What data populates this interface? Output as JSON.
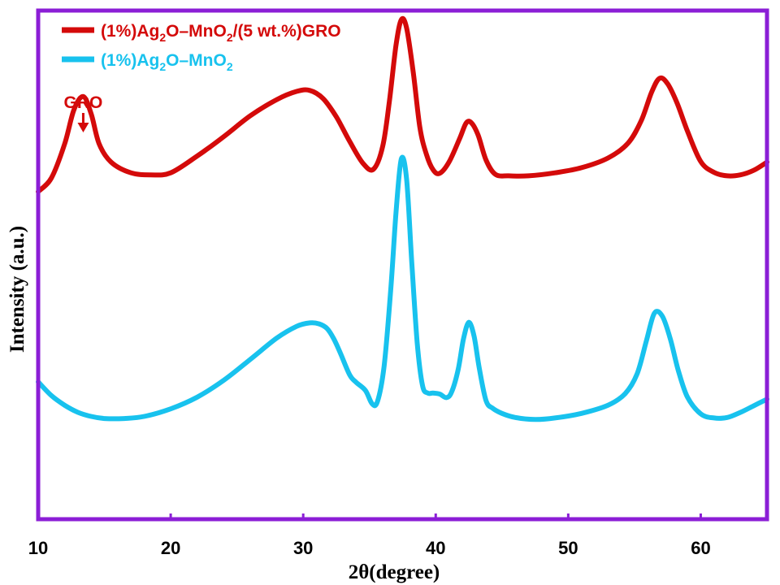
{
  "chart_data": {
    "type": "line",
    "xlabel": "2θ(degree)",
    "ylabel": "Intensity (a.u.)",
    "xlim": [
      10,
      65
    ],
    "ylim": [
      0,
      100
    ],
    "xticks": [
      10,
      20,
      30,
      40,
      50,
      60
    ],
    "y_ticks_shown": false,
    "grid": false,
    "legend_position": "top-left",
    "frame_color": "#8b1ed6",
    "series": [
      {
        "name": "(1%)Ag2O–MnO2/(5 wt.%)GRO",
        "legend_parts": [
          {
            "t": "(1%)Ag",
            "sub": false
          },
          {
            "t": "2",
            "sub": true
          },
          {
            "t": "O–MnO",
            "sub": false
          },
          {
            "t": "2",
            "sub": true
          },
          {
            "t": "/(5 wt.%)GRO",
            "sub": false
          }
        ],
        "color": "#d40a0a",
        "x": [
          10,
          11,
          12,
          12.7,
          13.4,
          14,
          14.6,
          15.5,
          17,
          18.5,
          20,
          22,
          24,
          26,
          28,
          29.5,
          30.5,
          31.5,
          32.5,
          33.5,
          34.5,
          35.3,
          36,
          36.5,
          37,
          37.4,
          37.8,
          38.3,
          38.8,
          39.3,
          39.8,
          40.3,
          41,
          41.8,
          42.3,
          42.7,
          43.2,
          43.8,
          44.5,
          45.5,
          47,
          49,
          51,
          53,
          54.5,
          55.5,
          56.3,
          56.9,
          57.5,
          58.2,
          59,
          60,
          61,
          62,
          63,
          64,
          65
        ],
        "y": [
          64.4,
          67.1,
          73.8,
          80.5,
          83.1,
          79.7,
          73.8,
          70.2,
          68.1,
          67.7,
          68.1,
          71.4,
          75.2,
          79.3,
          82.5,
          84.1,
          84.3,
          82.7,
          79.1,
          74.3,
          70.0,
          68.8,
          73.3,
          82.1,
          93.1,
          98.2,
          96.6,
          88.0,
          77.1,
          71.7,
          68.7,
          68.0,
          70.2,
          74.8,
          77.9,
          77.9,
          75.5,
          70.6,
          67.8,
          67.5,
          67.5,
          68.1,
          69.1,
          71.0,
          73.9,
          78.3,
          84.0,
          86.7,
          85.6,
          81.9,
          76.3,
          70.3,
          68.2,
          67.5,
          67.7,
          68.6,
          70.2
        ]
      },
      {
        "name": "(1%)Ag2O–MnO2",
        "legend_parts": [
          {
            "t": "(1%)Ag",
            "sub": false
          },
          {
            "t": "2",
            "sub": true
          },
          {
            "t": "O–MnO",
            "sub": false
          },
          {
            "t": "2",
            "sub": true
          }
        ],
        "color": "#18c2ee",
        "x": [
          10,
          11,
          12,
          13,
          14,
          15,
          16.5,
          18,
          20,
          22,
          24,
          26,
          28,
          29.5,
          30.5,
          31.2,
          31.8,
          32.3,
          32.8,
          33.5,
          34,
          34.7,
          35.2,
          35.6,
          36.1,
          36.6,
          37,
          37.4,
          37.8,
          38.2,
          38.6,
          39,
          39.4,
          39.8,
          40.3,
          40.8,
          41.2,
          41.7,
          42.1,
          42.5,
          42.9,
          43.3,
          43.8,
          44.3,
          45,
          46,
          47.5,
          49,
          51,
          53,
          54.3,
          55.2,
          55.9,
          56.5,
          57.1,
          57.7,
          58.3,
          59,
          60,
          61,
          62,
          63,
          64,
          65
        ],
        "y": [
          27.0,
          24.3,
          22.4,
          21.0,
          20.2,
          19.8,
          19.8,
          20.2,
          21.7,
          24.0,
          27.3,
          31.4,
          35.6,
          37.9,
          38.6,
          38.4,
          37.5,
          35.5,
          32.7,
          28.4,
          26.9,
          25.3,
          22.7,
          23.1,
          30.0,
          44.9,
          60.1,
          70.8,
          66.9,
          50.2,
          34.8,
          26.3,
          24.8,
          24.8,
          24.6,
          23.9,
          25.0,
          29.5,
          35.5,
          38.7,
          35.9,
          29.5,
          23.3,
          21.8,
          20.8,
          20.0,
          19.6,
          19.9,
          20.8,
          22.4,
          24.7,
          28.6,
          35.1,
          40.5,
          39.9,
          35.5,
          29.3,
          24.0,
          20.7,
          19.9,
          20.0,
          21.0,
          22.3,
          23.6
        ]
      }
    ],
    "annotations": [
      {
        "text": "GRO",
        "x": 13.4,
        "arrow": true,
        "color": "#d40a0a"
      }
    ]
  }
}
